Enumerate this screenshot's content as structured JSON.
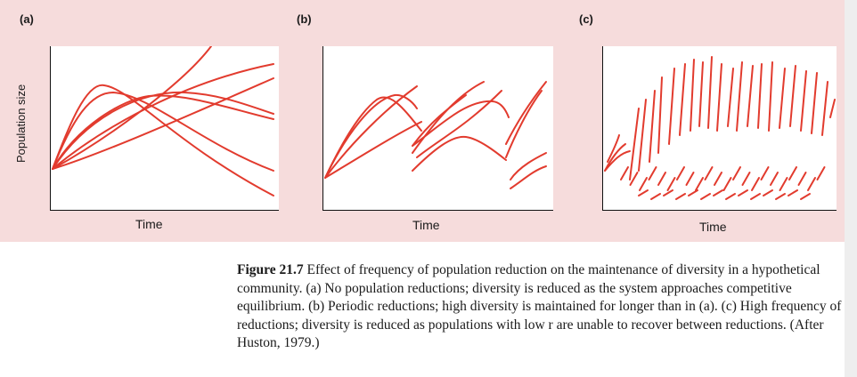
{
  "figure": {
    "y_axis_label": "Population size",
    "panels": [
      {
        "label": "(a)",
        "x_axis_label": "Time"
      },
      {
        "label": "(b)",
        "x_axis_label": "Time"
      },
      {
        "label": "(c)",
        "x_axis_label": "Time"
      }
    ]
  },
  "caption": {
    "figure_number": "Figure 21.7",
    "text": "Effect of frequency of population reduction on the maintenance of diversity in a hypothetical community. (a) No population reductions; diversity is reduced as the system approaches competitive equilibrium. (b) Periodic reductions; high diversity is maintained for longer than in (a). (c) High frequency of reductions; diversity is reduced as populations with low r are unable to recover between reductions. (After Huston, 1979.)"
  },
  "colors": {
    "curve": "#e23b2e",
    "background": "#f6dcdc"
  },
  "chart_data": [
    {
      "type": "line",
      "title": "(a)",
      "xlabel": "Time",
      "ylabel": "Population size",
      "grid": false,
      "series": [],
      "note_values": []
    },
    {
      "type": "line",
      "title": "(b)",
      "xlabel": "Time",
      "ylabel": "",
      "grid": false,
      "series": []
    },
    {
      "type": "line",
      "title": "(c)",
      "xlabel": "Time",
      "ylabel": "",
      "grid": false,
      "series": []
    }
  ]
}
